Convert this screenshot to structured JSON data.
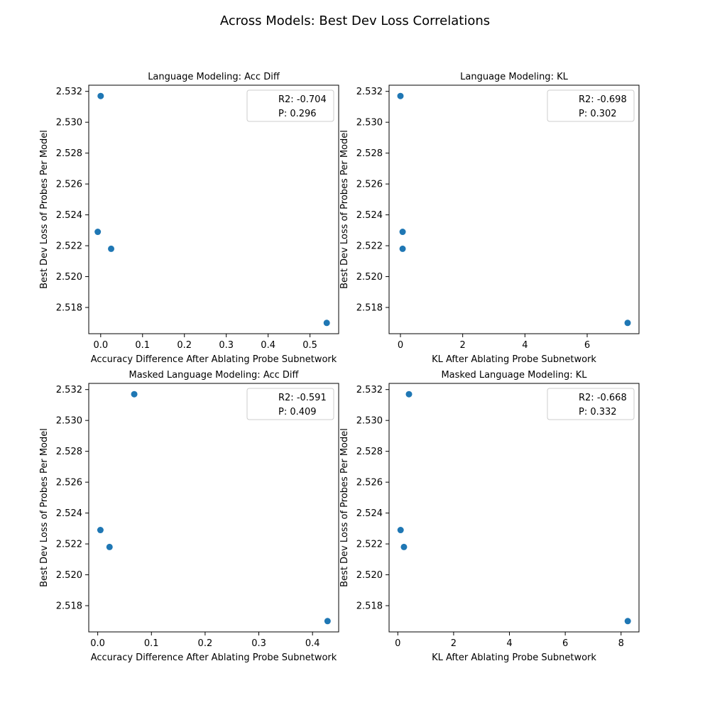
{
  "figure_title": "Across Models: Best Dev Loss Correlations",
  "colors": {
    "marker": "#1f77b4",
    "axes": "#000000",
    "legend_border": "#cccccc"
  },
  "chart_data": [
    {
      "type": "scatter",
      "title": "Language Modeling: Acc Diff",
      "xlabel": "Accuracy Difference After Ablating Probe Subnetwork",
      "ylabel": "Best Dev Loss of Probes Per Model",
      "xlim": [
        -0.0285,
        0.5685
      ],
      "ylim": [
        2.5163,
        2.5324
      ],
      "xticks": [
        0.0,
        0.1,
        0.2,
        0.3,
        0.4,
        0.5
      ],
      "xtick_labels": [
        "0.0",
        "0.1",
        "0.2",
        "0.3",
        "0.4",
        "0.5"
      ],
      "yticks": [
        2.518,
        2.52,
        2.522,
        2.524,
        2.526,
        2.528,
        2.53,
        2.532
      ],
      "ytick_labels": [
        "2.518",
        "2.520",
        "2.522",
        "2.524",
        "2.526",
        "2.528",
        "2.530",
        "2.532"
      ],
      "points": [
        {
          "x": 0.0,
          "y": 2.5317
        },
        {
          "x": -0.007,
          "y": 2.5229
        },
        {
          "x": 0.025,
          "y": 2.5218
        },
        {
          "x": 0.54,
          "y": 2.517
        }
      ],
      "legend": {
        "position": "upper right",
        "lines": [
          "R2: -0.704",
          "P: 0.296"
        ]
      }
    },
    {
      "type": "scatter",
      "title": "Language Modeling: KL",
      "xlabel": "KL After Ablating Probe Subnetwork",
      "ylabel": "Best Dev Loss of Probes Per Model",
      "xlim": [
        -0.365,
        7.665
      ],
      "ylim": [
        2.5163,
        2.5324
      ],
      "xticks": [
        0,
        2,
        4,
        6
      ],
      "xtick_labels": [
        "0",
        "2",
        "4",
        "6"
      ],
      "yticks": [
        2.518,
        2.52,
        2.522,
        2.524,
        2.526,
        2.528,
        2.53,
        2.532
      ],
      "ytick_labels": [
        "2.518",
        "2.520",
        "2.522",
        "2.524",
        "2.526",
        "2.528",
        "2.530",
        "2.532"
      ],
      "points": [
        {
          "x": 0.0,
          "y": 2.5317
        },
        {
          "x": 0.07,
          "y": 2.5229
        },
        {
          "x": 0.07,
          "y": 2.5218
        },
        {
          "x": 7.3,
          "y": 2.517
        }
      ],
      "legend": {
        "position": "upper right",
        "lines": [
          "R2: -0.698",
          "P: 0.302"
        ]
      }
    },
    {
      "type": "scatter",
      "title": "Masked Language Modeling: Acc Diff",
      "xlabel": "Accuracy Difference After Ablating Probe Subnetwork",
      "ylabel": "Best Dev Loss of Probes Per Model",
      "xlim": [
        -0.0167,
        0.4487
      ],
      "ylim": [
        2.5163,
        2.5324
      ],
      "xticks": [
        0.0,
        0.1,
        0.2,
        0.3,
        0.4
      ],
      "xtick_labels": [
        "0.0",
        "0.1",
        "0.2",
        "0.3",
        "0.4"
      ],
      "yticks": [
        2.518,
        2.52,
        2.522,
        2.524,
        2.526,
        2.528,
        2.53,
        2.532
      ],
      "ytick_labels": [
        "2.518",
        "2.520",
        "2.522",
        "2.524",
        "2.526",
        "2.528",
        "2.530",
        "2.532"
      ],
      "points": [
        {
          "x": 0.068,
          "y": 2.5317
        },
        {
          "x": 0.005,
          "y": 2.5229
        },
        {
          "x": 0.022,
          "y": 2.5218
        },
        {
          "x": 0.428,
          "y": 2.517
        }
      ],
      "legend": {
        "position": "upper right",
        "lines": [
          "R2: -0.591",
          "P: 0.409"
        ]
      }
    },
    {
      "type": "scatter",
      "title": "Masked Language Modeling: KL",
      "xlabel": "KL After Ablating Probe Subnetwork",
      "ylabel": "Best Dev Loss of Probes Per Model",
      "xlim": [
        -0.3125,
        8.6425
      ],
      "ylim": [
        2.5163,
        2.5324
      ],
      "xticks": [
        0,
        2,
        4,
        6,
        8
      ],
      "xtick_labels": [
        "0",
        "2",
        "4",
        "6",
        "8"
      ],
      "yticks": [
        2.518,
        2.52,
        2.522,
        2.524,
        2.526,
        2.528,
        2.53,
        2.532
      ],
      "ytick_labels": [
        "2.518",
        "2.520",
        "2.522",
        "2.524",
        "2.526",
        "2.528",
        "2.530",
        "2.532"
      ],
      "points": [
        {
          "x": 0.4,
          "y": 2.5317
        },
        {
          "x": 0.1,
          "y": 2.5229
        },
        {
          "x": 0.22,
          "y": 2.5218
        },
        {
          "x": 8.24,
          "y": 2.517
        }
      ],
      "legend": {
        "position": "upper right",
        "lines": [
          "R2: -0.668",
          "P: 0.332"
        ]
      }
    }
  ]
}
